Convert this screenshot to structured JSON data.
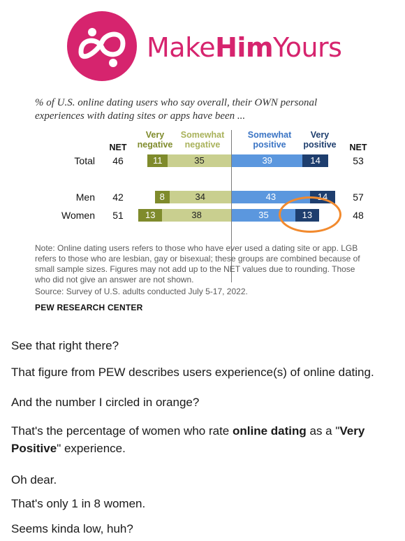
{
  "brand": {
    "name_part1": "Make",
    "name_part2": "Him",
    "name_part3": "Yours",
    "color": "#d6246e",
    "logo_icon": "infinity-people-icon"
  },
  "figure": {
    "title": "% of U.S. online dating users who say overall, their OWN personal experiences with dating sites or apps have been ...",
    "headers": {
      "net_left": "NET",
      "very_negative": "Very negative",
      "somewhat_negative": "Somewhat negative",
      "somewhat_positive": "Somewhat positive",
      "very_positive": "Very positive",
      "net_right": "NET"
    },
    "note": "Note: Online dating users refers to those who have ever used a dating site or app. LGB refers to those who are lesbian, gay or bisexual; these groups are combined because of small sample sizes. Figures may not add up to the NET values due to rounding. Those who did not give an answer are not shown.",
    "source": "Source: Survey of U.S. adults conducted July 5-17, 2022.",
    "org": "PEW RESEARCH CENTER",
    "highlight_color": "#f28a2e"
  },
  "chart_data": {
    "type": "bar",
    "title": "% of U.S. online dating users who say overall, their OWN personal experiences with dating sites or apps have been ...",
    "categories": [
      "Total",
      "Men",
      "Women"
    ],
    "net_negative": [
      46,
      42,
      51
    ],
    "net_positive": [
      53,
      57,
      48
    ],
    "series": [
      {
        "name": "Very negative",
        "values": [
          11,
          8,
          13
        ],
        "color": "#7f8b2c"
      },
      {
        "name": "Somewhat negative",
        "values": [
          35,
          34,
          38
        ],
        "color": "#c9cf8f"
      },
      {
        "name": "Somewhat positive",
        "values": [
          39,
          43,
          35
        ],
        "color": "#5b97de"
      },
      {
        "name": "Very positive",
        "values": [
          14,
          14,
          13
        ],
        "color": "#1e3e6e"
      }
    ],
    "labels": {
      "Total": {
        "vneg": "11",
        "sneg": "35",
        "spos": "39",
        "vpos": "14",
        "net_neg": "46",
        "net_pos": "53"
      },
      "Men": {
        "vneg": "8",
        "sneg": "34",
        "spos": "43",
        "vpos": "14",
        "net_neg": "42",
        "net_pos": "57"
      },
      "Women": {
        "vneg": "13",
        "sneg": "38",
        "spos": "35",
        "vpos": "13",
        "net_neg": "51",
        "net_pos": "48"
      }
    },
    "highlighted": {
      "category": "Women",
      "series": "Very positive",
      "value": 13
    }
  },
  "text": {
    "p1": "See that right there?",
    "p2": "That figure from PEW describes users experience(s) of online dating.",
    "p3": "And the number I circled in orange?",
    "p4_a": "That's the percentage of women who rate ",
    "p4_b": "online dating",
    "p4_c": " as a \"",
    "p4_d": "Very Positive",
    "p4_e": "\" experience.",
    "p5": "Oh dear.",
    "p6": "That's only 1 in 8 women.",
    "p7": "Seems kinda low, huh?"
  }
}
